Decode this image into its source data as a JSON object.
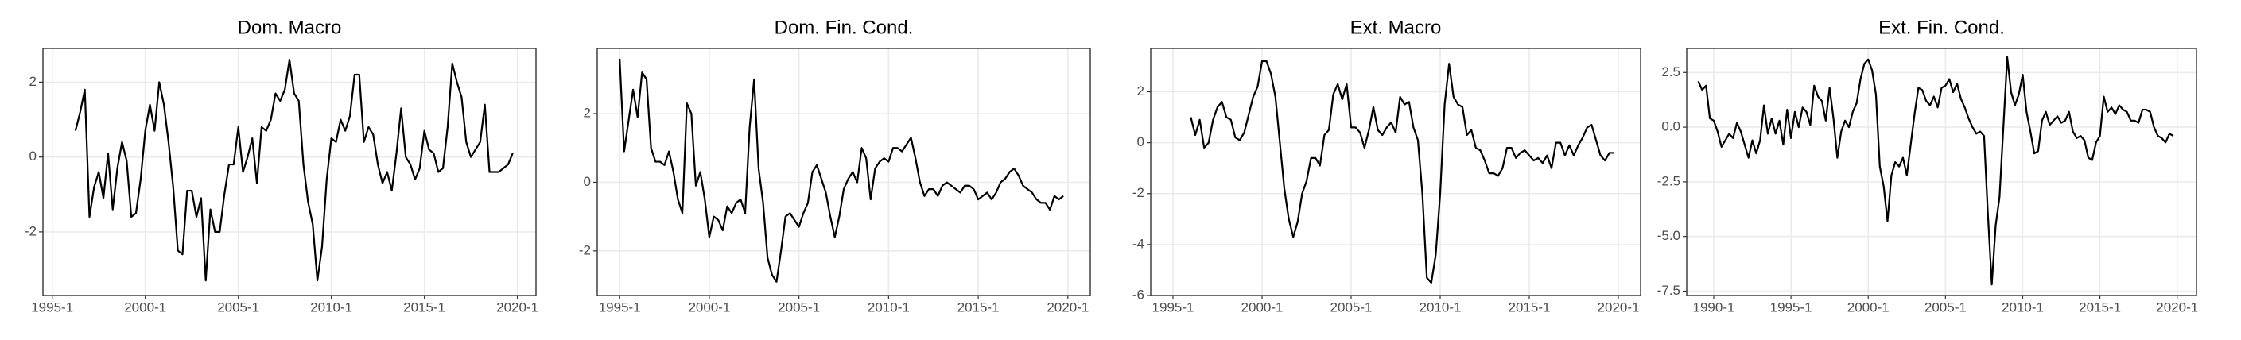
{
  "chart_data": [
    {
      "type": "line",
      "title": "Dom. Macro",
      "color": "#000000",
      "grid": true,
      "xlim": [
        "1994-3",
        "2021-1"
      ],
      "xticks": [
        "1995-1",
        "2000-1",
        "2005-1",
        "2010-1",
        "2015-1",
        "2020-1"
      ],
      "ylim": [
        -3.7,
        2.9
      ],
      "yticks": [
        -2,
        0,
        2
      ],
      "x": [
        "1996-2",
        "1996-3",
        "1996-4",
        "1997-1",
        "1997-2",
        "1997-3",
        "1997-4",
        "1998-1",
        "1998-2",
        "1998-3",
        "1998-4",
        "1999-1",
        "1999-2",
        "1999-3",
        "1999-4",
        "2000-1",
        "2000-2",
        "2000-3",
        "2000-4",
        "2001-1",
        "2001-2",
        "2001-3",
        "2001-4",
        "2002-1",
        "2002-2",
        "2002-3",
        "2002-4",
        "2003-1",
        "2003-2",
        "2003-3",
        "2003-4",
        "2004-1",
        "2004-2",
        "2004-3",
        "2004-4",
        "2005-1",
        "2005-2",
        "2005-3",
        "2005-4",
        "2006-1",
        "2006-2",
        "2006-3",
        "2006-4",
        "2007-1",
        "2007-2",
        "2007-3",
        "2007-4",
        "2008-1",
        "2008-2",
        "2008-3",
        "2008-4",
        "2009-1",
        "2009-2",
        "2009-3",
        "2009-4",
        "2010-1",
        "2010-2",
        "2010-3",
        "2010-4",
        "2011-1",
        "2011-2",
        "2011-3",
        "2011-4",
        "2012-1",
        "2012-2",
        "2012-3",
        "2012-4",
        "2013-1",
        "2013-2",
        "2013-3",
        "2013-4",
        "2014-1",
        "2014-2",
        "2014-3",
        "2014-4",
        "2015-1",
        "2015-2",
        "2015-3",
        "2015-4",
        "2016-1",
        "2016-2",
        "2016-3",
        "2016-4",
        "2017-1",
        "2017-2",
        "2017-3",
        "2017-4",
        "2018-1",
        "2018-2",
        "2018-3",
        "2018-4",
        "2019-1",
        "2019-2",
        "2019-3",
        "2019-4"
      ],
      "values": [
        0.7,
        1.2,
        1.8,
        -1.6,
        -0.8,
        -0.4,
        -1.1,
        0.1,
        -1.4,
        -0.3,
        0.4,
        -0.1,
        -1.6,
        -1.5,
        -0.6,
        0.7,
        1.4,
        0.7,
        2.0,
        1.4,
        0.4,
        -0.8,
        -2.5,
        -2.6,
        -0.9,
        -0.9,
        -1.6,
        -1.1,
        -3.3,
        -1.4,
        -2.0,
        -2.0,
        -1.0,
        -0.2,
        -0.2,
        0.8,
        -0.4,
        0.0,
        0.5,
        -0.7,
        0.8,
        0.7,
        1.0,
        1.7,
        1.5,
        1.8,
        2.6,
        1.7,
        1.5,
        -0.2,
        -1.2,
        -1.8,
        -3.3,
        -2.4,
        -0.6,
        0.5,
        0.4,
        1.0,
        0.7,
        1.1,
        2.2,
        2.2,
        0.4,
        0.8,
        0.6,
        -0.2,
        -0.7,
        -0.4,
        -0.9,
        0.1,
        1.3,
        0.0,
        -0.2,
        -0.6,
        -0.3,
        0.7,
        0.2,
        0.1,
        -0.4,
        -0.3,
        0.8,
        2.5,
        2.0,
        1.6,
        0.4,
        0.0,
        0.2,
        0.4,
        1.4,
        -0.4,
        -0.4,
        -0.4,
        -0.3,
        -0.2,
        0.1
      ]
    },
    {
      "type": "line",
      "title": "Dom. Fin. Cond.",
      "color": "#000000",
      "grid": true,
      "xlim": [
        "1993-4",
        "2021-2"
      ],
      "xticks": [
        "1995-1",
        "2000-1",
        "2005-1",
        "2010-1",
        "2015-1",
        "2020-1"
      ],
      "ylim": [
        -3.3,
        3.9
      ],
      "yticks": [
        -2,
        0,
        2
      ],
      "x": [
        "1995-1",
        "1995-2",
        "1995-3",
        "1995-4",
        "1996-1",
        "1996-2",
        "1996-3",
        "1996-4",
        "1997-1",
        "1997-2",
        "1997-3",
        "1997-4",
        "1998-1",
        "1998-2",
        "1998-3",
        "1998-4",
        "1999-1",
        "1999-2",
        "1999-3",
        "1999-4",
        "2000-1",
        "2000-2",
        "2000-3",
        "2000-4",
        "2001-1",
        "2001-2",
        "2001-3",
        "2001-4",
        "2002-1",
        "2002-2",
        "2002-3",
        "2002-4",
        "2003-1",
        "2003-2",
        "2003-3",
        "2003-4",
        "2004-1",
        "2004-2",
        "2004-3",
        "2004-4",
        "2005-1",
        "2005-2",
        "2005-3",
        "2005-4",
        "2006-1",
        "2006-2",
        "2006-3",
        "2006-4",
        "2007-1",
        "2007-2",
        "2007-3",
        "2007-4",
        "2008-1",
        "2008-2",
        "2008-3",
        "2008-4",
        "2009-1",
        "2009-2",
        "2009-3",
        "2009-4",
        "2010-1",
        "2010-2",
        "2010-3",
        "2010-4",
        "2011-1",
        "2011-2",
        "2011-3",
        "2011-4",
        "2012-1",
        "2012-2",
        "2012-3",
        "2012-4",
        "2013-1",
        "2013-2",
        "2013-3",
        "2013-4",
        "2014-1",
        "2014-2",
        "2014-3",
        "2014-4",
        "2015-1",
        "2015-2",
        "2015-3",
        "2015-4",
        "2016-1",
        "2016-2",
        "2016-3",
        "2016-4",
        "2017-1",
        "2017-2",
        "2017-3",
        "2017-4",
        "2018-1",
        "2018-2",
        "2018-3",
        "2018-4",
        "2019-1",
        "2019-2",
        "2019-3",
        "2019-4"
      ],
      "values": [
        3.6,
        0.9,
        1.8,
        2.7,
        1.9,
        3.2,
        3.0,
        1.0,
        0.6,
        0.6,
        0.5,
        0.9,
        0.3,
        -0.5,
        -0.9,
        2.3,
        2.0,
        -0.1,
        0.3,
        -0.5,
        -1.6,
        -1.0,
        -1.1,
        -1.4,
        -0.7,
        -0.9,
        -0.6,
        -0.5,
        -0.9,
        1.6,
        3.0,
        0.4,
        -0.6,
        -2.2,
        -2.7,
        -2.9,
        -2.0,
        -1.0,
        -0.9,
        -1.1,
        -1.3,
        -0.9,
        -0.6,
        0.3,
        0.5,
        0.1,
        -0.3,
        -1.0,
        -1.6,
        -1.0,
        -0.2,
        0.1,
        0.3,
        0.0,
        1.0,
        0.7,
        -0.5,
        0.4,
        0.6,
        0.7,
        0.6,
        1.0,
        1.0,
        0.9,
        1.1,
        1.3,
        0.7,
        0.0,
        -0.4,
        -0.2,
        -0.2,
        -0.4,
        -0.1,
        0.0,
        -0.1,
        -0.2,
        -0.3,
        -0.1,
        -0.1,
        -0.2,
        -0.5,
        -0.4,
        -0.3,
        -0.5,
        -0.3,
        0.0,
        0.1,
        0.3,
        0.4,
        0.2,
        -0.1,
        -0.2,
        -0.3,
        -0.5,
        -0.6,
        -0.6,
        -0.8,
        -0.4,
        -0.5,
        -0.4
      ]
    },
    {
      "type": "line",
      "title": "Ext. Macro",
      "color": "#000000",
      "grid": true,
      "xlim": [
        "1993-4",
        "2021-2"
      ],
      "xticks": [
        "1995-1",
        "2000-1",
        "2005-1",
        "2010-1",
        "2015-1",
        "2020-1"
      ],
      "ylim": [
        -6,
        3.7
      ],
      "yticks": [
        -6,
        -4,
        -2,
        0,
        2
      ],
      "x": [
        "1996-1",
        "1996-2",
        "1996-3",
        "1996-4",
        "1997-1",
        "1997-2",
        "1997-3",
        "1997-4",
        "1998-1",
        "1998-2",
        "1998-3",
        "1998-4",
        "1999-1",
        "1999-2",
        "1999-3",
        "1999-4",
        "2000-1",
        "2000-2",
        "2000-3",
        "2000-4",
        "2001-1",
        "2001-2",
        "2001-3",
        "2001-4",
        "2002-1",
        "2002-2",
        "2002-3",
        "2002-4",
        "2003-1",
        "2003-2",
        "2003-3",
        "2003-4",
        "2004-1",
        "2004-2",
        "2004-3",
        "2004-4",
        "2005-1",
        "2005-2",
        "2005-3",
        "2005-4",
        "2006-1",
        "2006-2",
        "2006-3",
        "2006-4",
        "2007-1",
        "2007-2",
        "2007-3",
        "2007-4",
        "2008-1",
        "2008-2",
        "2008-3",
        "2008-4",
        "2009-1",
        "2009-2",
        "2009-3",
        "2009-4",
        "2010-1",
        "2010-2",
        "2010-3",
        "2010-4",
        "2011-1",
        "2011-2",
        "2011-3",
        "2011-4",
        "2012-1",
        "2012-2",
        "2012-3",
        "2012-4",
        "2013-1",
        "2013-2",
        "2013-3",
        "2013-4",
        "2014-1",
        "2014-2",
        "2014-3",
        "2014-4",
        "2015-1",
        "2015-2",
        "2015-3",
        "2015-4",
        "2016-1",
        "2016-2",
        "2016-3",
        "2016-4",
        "2017-1",
        "2017-2",
        "2017-3",
        "2017-4",
        "2018-1",
        "2018-2",
        "2018-3",
        "2018-4",
        "2019-1",
        "2019-2",
        "2019-3",
        "2019-4"
      ],
      "values": [
        1.0,
        0.3,
        0.9,
        -0.2,
        0.0,
        0.9,
        1.4,
        1.6,
        1.0,
        0.9,
        0.2,
        0.1,
        0.4,
        1.1,
        1.8,
        2.2,
        3.2,
        3.2,
        2.7,
        1.8,
        0.0,
        -1.8,
        -3.0,
        -3.7,
        -3.1,
        -2.0,
        -1.5,
        -0.6,
        -0.6,
        -0.9,
        0.3,
        0.5,
        1.9,
        2.3,
        1.7,
        2.3,
        0.6,
        0.6,
        0.4,
        -0.2,
        0.5,
        1.4,
        0.5,
        0.3,
        0.6,
        0.8,
        0.4,
        1.8,
        1.5,
        1.6,
        0.6,
        0.1,
        -2.0,
        -5.3,
        -5.5,
        -4.4,
        -2.0,
        1.5,
        3.1,
        1.8,
        1.5,
        1.4,
        0.3,
        0.5,
        -0.2,
        -0.3,
        -0.7,
        -1.2,
        -1.2,
        -1.3,
        -1.0,
        -0.2,
        -0.2,
        -0.6,
        -0.4,
        -0.3,
        -0.5,
        -0.7,
        -0.6,
        -0.8,
        -0.5,
        -1.0,
        0.0,
        0.0,
        -0.5,
        -0.1,
        -0.5,
        -0.1,
        0.2,
        0.6,
        0.7,
        0.1,
        -0.5,
        -0.7,
        -0.4,
        -0.4
      ]
    },
    {
      "type": "line",
      "title": "Ext. Fin. Cond.",
      "color": "#000000",
      "grid": true,
      "xlim": [
        "1988-2",
        "2021-2"
      ],
      "xticks": [
        "1990-1",
        "1995-1",
        "2000-1",
        "2005-1",
        "2010-1",
        "2015-1",
        "2020-1"
      ],
      "ylim": [
        -7.7,
        3.6
      ],
      "yticks": [
        -7.5,
        {
          "value": -5,
          "label": "-5.0"
        },
        -2.5,
        {
          "value": 0,
          "label": "0.0"
        },
        2.5
      ],
      "x": [
        "1989-1",
        "1989-2",
        "1989-3",
        "1989-4",
        "1990-1",
        "1990-2",
        "1990-3",
        "1990-4",
        "1991-1",
        "1991-2",
        "1991-3",
        "1991-4",
        "1992-1",
        "1992-2",
        "1992-3",
        "1992-4",
        "1993-1",
        "1993-2",
        "1993-3",
        "1993-4",
        "1994-1",
        "1994-2",
        "1994-3",
        "1994-4",
        "1995-1",
        "1995-2",
        "1995-3",
        "1995-4",
        "1996-1",
        "1996-2",
        "1996-3",
        "1996-4",
        "1997-1",
        "1997-2",
        "1997-3",
        "1997-4",
        "1998-1",
        "1998-2",
        "1998-3",
        "1998-4",
        "1999-1",
        "1999-2",
        "1999-3",
        "1999-4",
        "2000-1",
        "2000-2",
        "2000-3",
        "2000-4",
        "2001-1",
        "2001-2",
        "2001-3",
        "2001-4",
        "2002-1",
        "2002-2",
        "2002-3",
        "2002-4",
        "2003-1",
        "2003-2",
        "2003-3",
        "2003-4",
        "2004-1",
        "2004-2",
        "2004-3",
        "2004-4",
        "2005-1",
        "2005-2",
        "2005-3",
        "2005-4",
        "2006-1",
        "2006-2",
        "2006-3",
        "2006-4",
        "2007-1",
        "2007-2",
        "2007-3",
        "2007-4",
        "2008-1",
        "2008-2",
        "2008-3",
        "2008-4",
        "2009-1",
        "2009-2",
        "2009-3",
        "2009-4",
        "2010-1",
        "2010-2",
        "2010-3",
        "2010-4",
        "2011-1",
        "2011-2",
        "2011-3",
        "2011-4",
        "2012-1",
        "2012-2",
        "2012-3",
        "2012-4",
        "2013-1",
        "2013-2",
        "2013-3",
        "2013-4",
        "2014-1",
        "2014-2",
        "2014-3",
        "2014-4",
        "2015-1",
        "2015-2",
        "2015-3",
        "2015-4",
        "2016-1",
        "2016-2",
        "2016-3",
        "2016-4",
        "2017-1",
        "2017-2",
        "2017-3",
        "2017-4",
        "2018-1",
        "2018-2",
        "2018-3",
        "2018-4",
        "2019-1",
        "2019-2",
        "2019-3",
        "2019-4"
      ],
      "values": [
        2.1,
        1.7,
        1.9,
        0.4,
        0.3,
        -0.2,
        -0.9,
        -0.6,
        -0.3,
        -0.5,
        0.2,
        -0.2,
        -0.8,
        -1.4,
        -0.6,
        -1.2,
        -0.6,
        1.0,
        -0.3,
        0.4,
        -0.3,
        0.3,
        -0.8,
        0.8,
        -0.5,
        0.7,
        0.0,
        0.9,
        0.7,
        0.1,
        1.9,
        1.4,
        1.2,
        0.3,
        1.8,
        0.4,
        -1.4,
        -0.2,
        0.3,
        0.0,
        0.7,
        1.1,
        2.2,
        2.9,
        3.1,
        2.6,
        1.5,
        -1.8,
        -2.7,
        -4.3,
        -2.2,
        -1.6,
        -1.8,
        -1.4,
        -2.2,
        -0.8,
        0.6,
        1.8,
        1.7,
        1.2,
        1.0,
        1.4,
        0.9,
        1.8,
        1.9,
        2.2,
        1.6,
        2.0,
        1.3,
        0.9,
        0.4,
        0.0,
        -0.3,
        -0.2,
        -0.4,
        -4.0,
        -7.2,
        -4.5,
        -3.2,
        0.0,
        3.2,
        1.6,
        1.0,
        1.5,
        2.4,
        0.7,
        -0.2,
        -1.2,
        -1.1,
        0.3,
        0.7,
        0.1,
        0.3,
        0.5,
        0.2,
        0.3,
        0.7,
        -0.2,
        -0.5,
        -0.4,
        -0.6,
        -1.4,
        -1.5,
        -0.7,
        -0.4,
        1.4,
        0.7,
        0.9,
        0.6,
        1.0,
        0.8,
        0.7,
        0.3,
        0.3,
        0.2,
        0.8,
        0.8,
        0.7,
        0.0,
        -0.4,
        -0.5,
        -0.7,
        -0.3,
        -0.4
      ]
    }
  ]
}
